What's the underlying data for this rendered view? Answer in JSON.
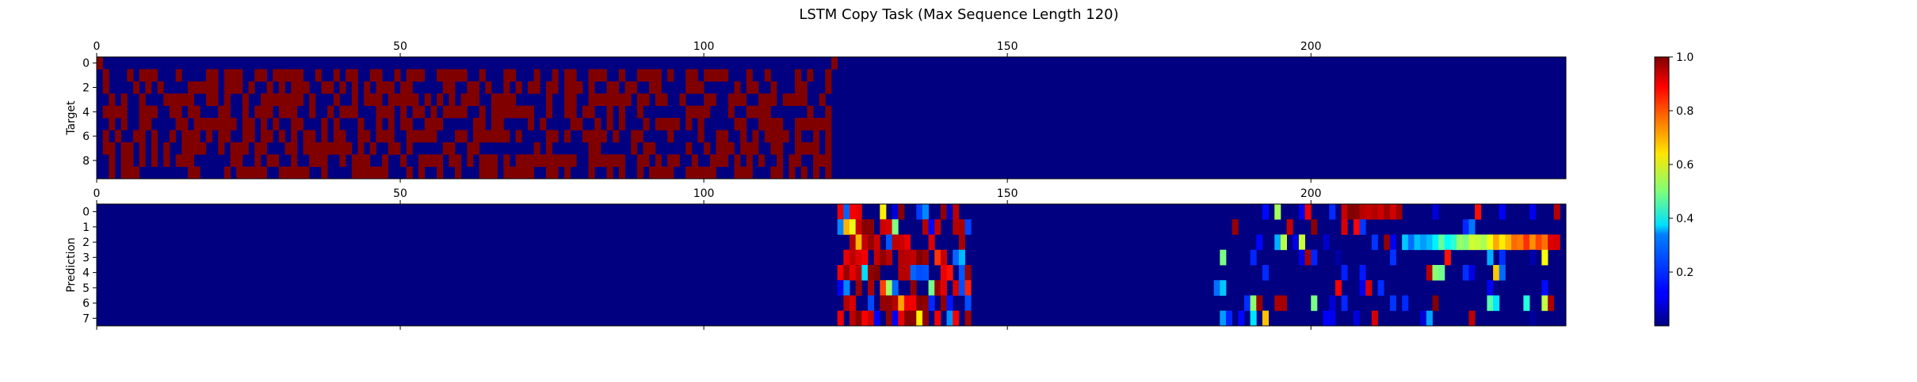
{
  "chart_data": {
    "type": "heatmap",
    "title": "LSTM Copy Task (Max Sequence Length 120)",
    "colormap": "jet",
    "colorbar": {
      "min": 0,
      "max": 1,
      "ticks": [
        0.2,
        0.4,
        0.6,
        0.8,
        1.0
      ],
      "tick_labels": [
        "0.2",
        "0.4",
        "0.6",
        "0.8",
        "1.0"
      ]
    },
    "x_range": [
      0,
      242
    ],
    "panels": [
      {
        "ylabel": "Target",
        "rows": 10,
        "columns": 242,
        "xticks": [
          0,
          50,
          100,
          150,
          200
        ],
        "xtick_labels": [
          "0",
          "50",
          "100",
          "150",
          "200"
        ],
        "yticks": [
          0,
          2,
          4,
          6,
          8
        ],
        "ytick_labels": [
          "0",
          "2",
          "4",
          "6",
          "8"
        ],
        "description_values": {
          "delimiter_row": 0,
          "delimiter_column": 121,
          "random_bit_rows": [
            1,
            9
          ],
          "random_bit_columns": [
            1,
            120
          ],
          "background_value": 0
        }
      },
      {
        "ylabel": "Prediction",
        "rows": 8,
        "columns": 242,
        "xticks": [
          0,
          50,
          100,
          150,
          200
        ],
        "xtick_labels": [
          "0",
          "50",
          "100",
          "150",
          "200"
        ],
        "yticks": [
          0,
          1,
          2,
          3,
          4,
          5,
          6,
          7
        ],
        "ytick_labels": [
          "0",
          "1",
          "2",
          "3",
          "4",
          "5",
          "6",
          "7"
        ],
        "active_column_ranges": [
          [
            122,
            143
          ],
          [
            184,
            242
          ]
        ],
        "background_value": 0
      }
    ]
  }
}
